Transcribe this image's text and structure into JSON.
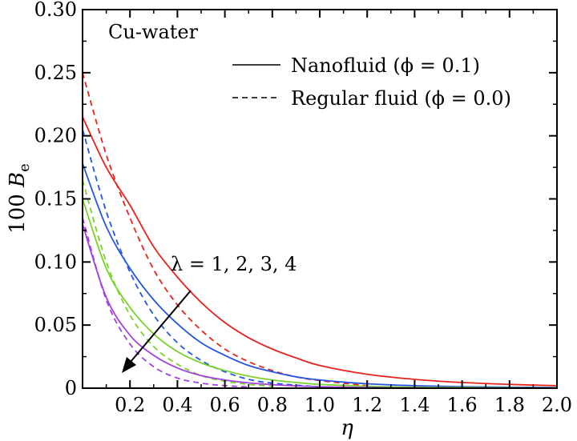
{
  "chart_data": {
    "type": "line",
    "title": "",
    "xlabel": "η",
    "ylabel_prefix": "100 ",
    "ylabel_var": "B",
    "ylabel_sub": "e",
    "xlim": [
      0,
      2.0
    ],
    "ylim": [
      0,
      0.3
    ],
    "xticks": [
      0.2,
      0.4,
      0.6,
      0.8,
      1.0,
      1.2,
      1.4,
      1.6,
      1.8,
      2.0
    ],
    "xtick_labels": [
      "0.2",
      "0.4",
      "0.6",
      "0.8",
      "1.0",
      "1.2",
      "1.4",
      "1.6",
      "1.8",
      "2.0"
    ],
    "yticks": [
      0,
      0.05,
      0.1,
      0.15,
      0.2,
      0.25,
      0.3
    ],
    "ytick_labels": [
      "0",
      "0.05",
      "0.10",
      "0.15",
      "0.20",
      "0.25",
      "0.30"
    ],
    "grid": false,
    "legend_position": "top-right",
    "annotation_topleft": "Cu-water",
    "legend": [
      {
        "label": "Nanofluid (ϕ = 0.1)",
        "style": "solid"
      },
      {
        "label": "Regular fluid (ϕ = 0.0)",
        "style": "dashed"
      }
    ],
    "arrow_annotation": "λ = 1, 2, 3, 4",
    "series": [
      {
        "lambda": 1,
        "style": "solid",
        "color": "#e8231e",
        "x": [
          0,
          0.1,
          0.2,
          0.3,
          0.4,
          0.5,
          0.6,
          0.7,
          0.8,
          0.9,
          1.0,
          1.2,
          1.4,
          1.6,
          1.8,
          2.0
        ],
        "y": [
          0.215,
          0.175,
          0.145,
          0.112,
          0.088,
          0.068,
          0.052,
          0.04,
          0.031,
          0.024,
          0.018,
          0.011,
          0.007,
          0.0045,
          0.003,
          0.002
        ]
      },
      {
        "lambda": 1,
        "style": "dashed",
        "color": "#e8231e",
        "x": [
          0,
          0.1,
          0.2,
          0.3,
          0.4,
          0.5,
          0.6,
          0.7,
          0.8,
          0.9,
          1.0,
          1.2
        ],
        "y": [
          0.25,
          0.185,
          0.135,
          0.094,
          0.066,
          0.046,
          0.031,
          0.021,
          0.014,
          0.009,
          0.006,
          0.002
        ]
      },
      {
        "lambda": 2,
        "style": "solid",
        "color": "#2356e6",
        "x": [
          0,
          0.1,
          0.2,
          0.3,
          0.4,
          0.5,
          0.6,
          0.7,
          0.8,
          0.9,
          1.0,
          1.2,
          1.4,
          1.6,
          1.8,
          2.0
        ],
        "y": [
          0.178,
          0.128,
          0.095,
          0.07,
          0.051,
          0.036,
          0.026,
          0.018,
          0.013,
          0.009,
          0.0065,
          0.0035,
          0.002,
          0.0012,
          0.0008,
          0.0005
        ]
      },
      {
        "lambda": 2,
        "style": "dashed",
        "color": "#2356e6",
        "x": [
          0,
          0.1,
          0.2,
          0.3,
          0.4,
          0.5,
          0.6,
          0.7,
          0.8,
          1.0
        ],
        "y": [
          0.205,
          0.14,
          0.092,
          0.058,
          0.036,
          0.022,
          0.013,
          0.007,
          0.004,
          0.001
        ]
      },
      {
        "lambda": 3,
        "style": "solid",
        "color": "#7ad12a",
        "x": [
          0,
          0.1,
          0.2,
          0.3,
          0.4,
          0.5,
          0.6,
          0.7,
          0.8,
          0.9,
          1.0,
          1.2,
          1.4,
          1.6,
          1.8,
          2.0
        ],
        "y": [
          0.15,
          0.095,
          0.064,
          0.043,
          0.029,
          0.02,
          0.014,
          0.0095,
          0.0065,
          0.0045,
          0.003,
          0.0015,
          0.0008,
          0.0005,
          0.0003,
          0.0002
        ]
      },
      {
        "lambda": 3,
        "style": "dashed",
        "color": "#7ad12a",
        "x": [
          0,
          0.1,
          0.2,
          0.3,
          0.4,
          0.5,
          0.6,
          0.7,
          0.8
        ],
        "y": [
          0.165,
          0.1,
          0.058,
          0.033,
          0.019,
          0.01,
          0.0055,
          0.003,
          0.0015
        ]
      },
      {
        "lambda": 4,
        "style": "solid",
        "color": "#a142e0",
        "x": [
          0,
          0.1,
          0.2,
          0.3,
          0.4,
          0.5,
          0.6,
          0.7,
          0.8,
          0.9,
          1.0,
          1.2,
          1.4,
          1.6,
          1.8,
          2.0
        ],
        "y": [
          0.13,
          0.072,
          0.042,
          0.026,
          0.016,
          0.01,
          0.0065,
          0.0042,
          0.0028,
          0.0018,
          0.0012,
          0.0005,
          0.0002,
          0.0001,
          0.0001,
          0.0001
        ]
      },
      {
        "lambda": 4,
        "style": "dashed",
        "color": "#a142e0",
        "x": [
          0,
          0.1,
          0.2,
          0.3,
          0.4,
          0.5,
          0.6,
          0.7
        ],
        "y": [
          0.135,
          0.07,
          0.035,
          0.017,
          0.008,
          0.004,
          0.002,
          0.001
        ]
      }
    ]
  }
}
